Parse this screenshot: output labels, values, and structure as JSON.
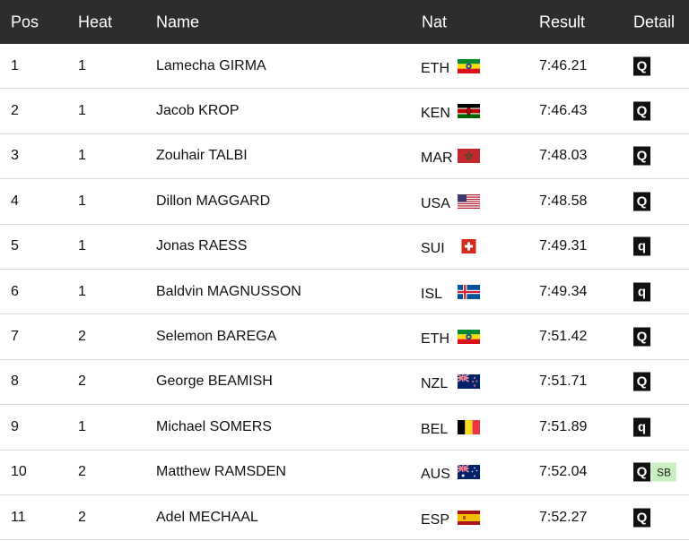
{
  "header": {
    "pos": "Pos",
    "heat": "Heat",
    "name": "Name",
    "nat": "Nat",
    "result": "Result",
    "detail": "Detail"
  },
  "rows": [
    {
      "pos": "1",
      "heat": "1",
      "name": "Lamecha GIRMA",
      "nat": "ETH",
      "flag": "ethiopia-flag",
      "result": "7:46.21",
      "q": "Q",
      "note": ""
    },
    {
      "pos": "2",
      "heat": "1",
      "name": "Jacob KROP",
      "nat": "KEN",
      "flag": "kenya-flag",
      "result": "7:46.43",
      "q": "Q",
      "note": ""
    },
    {
      "pos": "3",
      "heat": "1",
      "name": "Zouhair TALBI",
      "nat": "MAR",
      "flag": "morocco-flag",
      "result": "7:48.03",
      "q": "Q",
      "note": ""
    },
    {
      "pos": "4",
      "heat": "1",
      "name": "Dillon MAGGARD",
      "nat": "USA",
      "flag": "usa-flag",
      "result": "7:48.58",
      "q": "Q",
      "note": ""
    },
    {
      "pos": "5",
      "heat": "1",
      "name": "Jonas RAESS",
      "nat": "SUI",
      "flag": "switzerland-flag",
      "result": "7:49.31",
      "q": "q",
      "note": ""
    },
    {
      "pos": "6",
      "heat": "1",
      "name": "Baldvin MAGNUSSON",
      "nat": "ISL",
      "flag": "iceland-flag",
      "result": "7:49.34",
      "q": "q",
      "note": ""
    },
    {
      "pos": "7",
      "heat": "2",
      "name": "Selemon BAREGA",
      "nat": "ETH",
      "flag": "ethiopia-flag",
      "result": "7:51.42",
      "q": "Q",
      "note": ""
    },
    {
      "pos": "8",
      "heat": "2",
      "name": "George BEAMISH",
      "nat": "NZL",
      "flag": "new-zealand-flag",
      "result": "7:51.71",
      "q": "Q",
      "note": ""
    },
    {
      "pos": "9",
      "heat": "1",
      "name": "Michael SOMERS",
      "nat": "BEL",
      "flag": "belgium-flag",
      "result": "7:51.89",
      "q": "q",
      "note": ""
    },
    {
      "pos": "10",
      "heat": "2",
      "name": "Matthew RAMSDEN",
      "nat": "AUS",
      "flag": "australia-flag",
      "result": "7:52.04",
      "q": "Q",
      "note": "SB"
    },
    {
      "pos": "11",
      "heat": "2",
      "name": "Adel MECHAAL",
      "nat": "ESP",
      "flag": "spain-flag",
      "result": "7:52.27",
      "q": "Q",
      "note": ""
    }
  ],
  "colors": {
    "header_bg": "#2d2d2d",
    "badge_bg": "#111111",
    "sb_bg": "#c8f0c0",
    "row_border": "#d9d9d9"
  }
}
